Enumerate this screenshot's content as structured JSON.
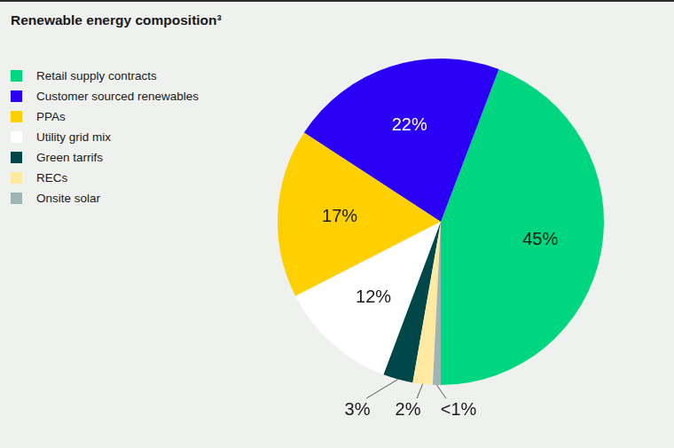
{
  "chart_data": {
    "type": "pie",
    "title": "Renewable energy composition³",
    "categories": [
      "Retail supply contracts",
      "Customer sourced renewables",
      "PPAs",
      "Utility grid mix",
      "Green tarrifs",
      "RECs",
      "Onsite solar"
    ],
    "values": [
      45,
      22,
      17,
      12,
      3,
      2,
      0.8
    ],
    "value_labels": [
      "45%",
      "22%",
      "17%",
      "12%",
      "3%",
      "2%",
      "<1%"
    ],
    "colors": [
      "#00d67f",
      "#2b00f6",
      "#ffd000",
      "#ffffff",
      "#00474a",
      "#fde9a0",
      "#9fb5b5"
    ],
    "data_labels": true,
    "legend": "left"
  }
}
